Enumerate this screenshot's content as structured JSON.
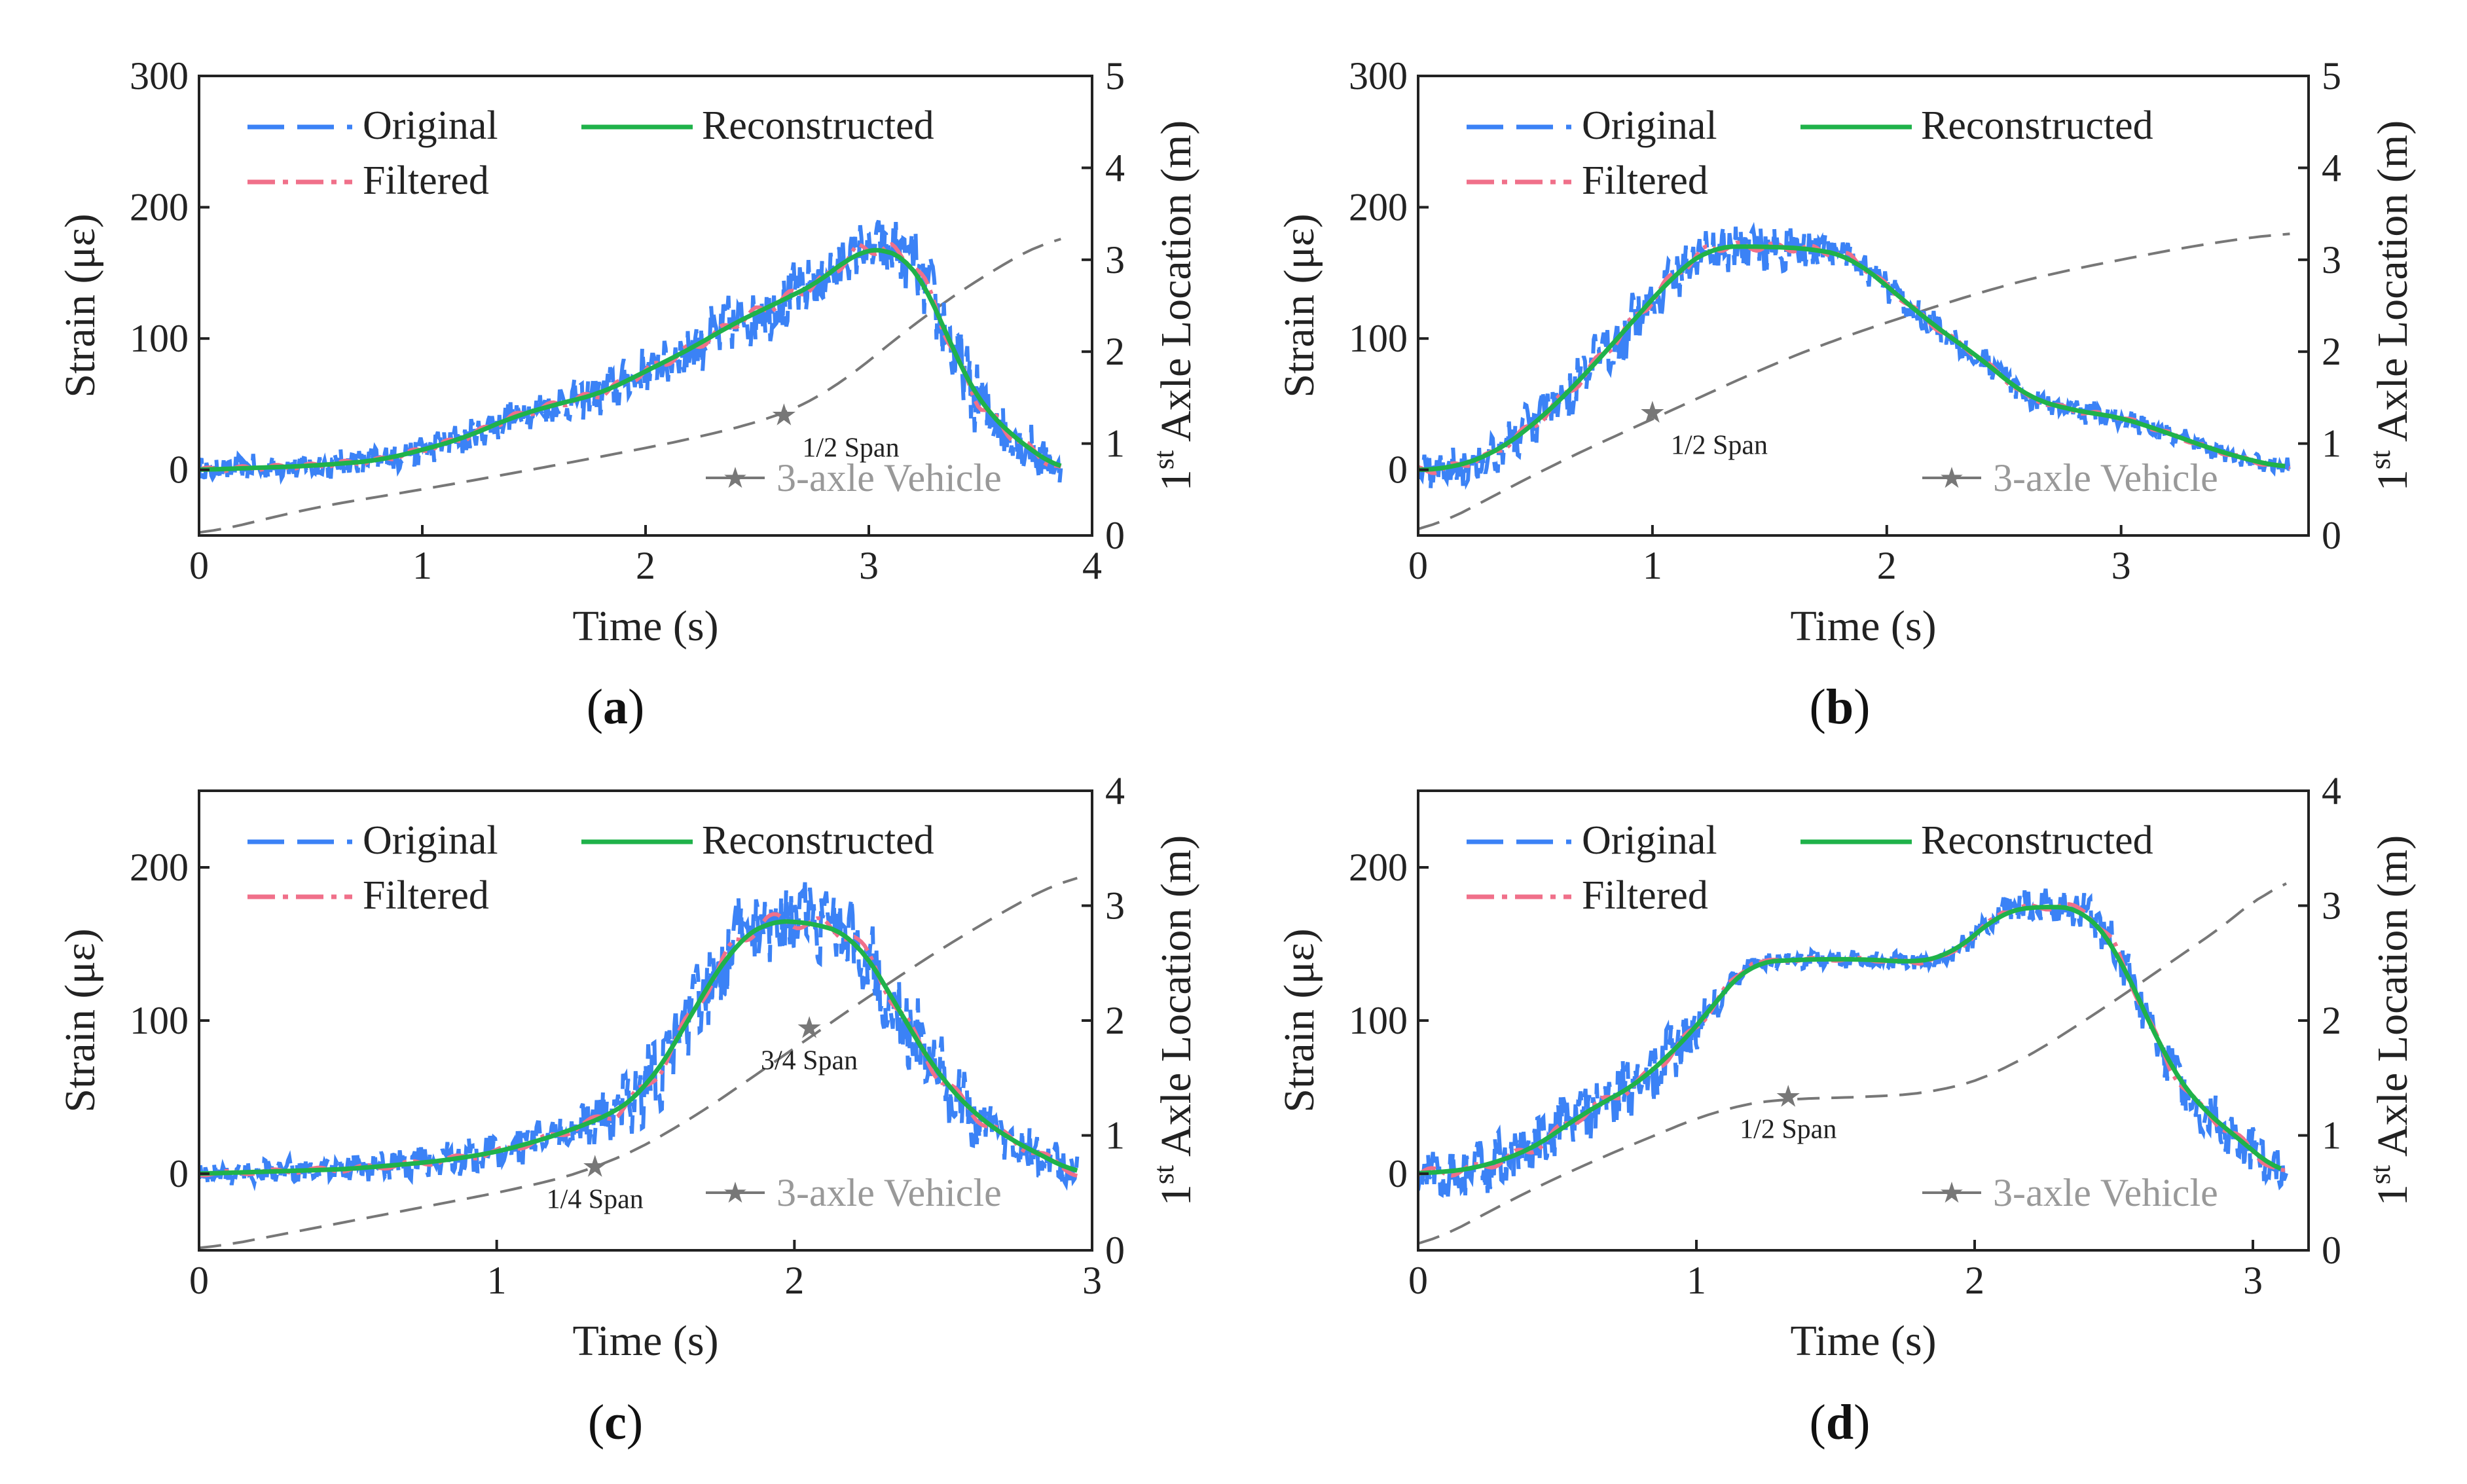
{
  "figure": {
    "colors": {
      "original": "#3b82f6",
      "filtered": "#f0708a",
      "reconstructed": "#1fb24a",
      "vehicle": "#777777",
      "vehicle_text": "#999999",
      "axis": "#222222"
    },
    "legend": {
      "original": "Original",
      "reconstructed": "Reconstructed",
      "filtered": "Filtered"
    }
  },
  "chart_data": [
    {
      "id": "a",
      "panel_label_open": "(",
      "panel_label_letter": "a",
      "panel_label_close": ")",
      "type": "line",
      "xlabel": "Time (s)",
      "ylabel": "Strain (με)",
      "y2label_prefix": "1",
      "y2label_sup": "st",
      "y2label_suffix": " Axle Location (m)",
      "xlim": [
        0,
        4
      ],
      "ylim": [
        -50,
        300
      ],
      "y2lim": [
        0,
        5
      ],
      "xticks": [
        0,
        1,
        2,
        3,
        4
      ],
      "yticks": [
        0,
        100,
        200,
        300
      ],
      "y2ticks": [
        0,
        1,
        2,
        3,
        4,
        5
      ],
      "vehicle_label": "3-axle Vehicle",
      "strain_curve": [
        [
          0,
          0
        ],
        [
          0.5,
          3
        ],
        [
          0.8,
          7
        ],
        [
          1.0,
          15
        ],
        [
          1.2,
          25
        ],
        [
          1.4,
          40
        ],
        [
          1.6,
          50
        ],
        [
          1.8,
          58
        ],
        [
          2.0,
          75
        ],
        [
          2.2,
          92
        ],
        [
          2.4,
          112
        ],
        [
          2.6,
          128
        ],
        [
          2.8,
          145
        ],
        [
          2.95,
          168
        ],
        [
          3.1,
          168
        ],
        [
          3.2,
          158
        ],
        [
          3.3,
          125
        ],
        [
          3.4,
          80
        ],
        [
          3.5,
          50
        ],
        [
          3.6,
          32
        ],
        [
          3.75,
          12
        ],
        [
          3.86,
          0
        ]
      ],
      "noise_amp": [
        [
          0,
          8
        ],
        [
          1.5,
          12
        ],
        [
          2.6,
          22
        ],
        [
          3.0,
          18
        ],
        [
          3.4,
          28
        ],
        [
          3.86,
          12
        ]
      ],
      "strain_span": [
        0,
        3.86
      ],
      "vehicle_curve": [
        [
          0,
          0
        ],
        [
          0.5,
          0.3
        ],
        [
          1.0,
          0.5
        ],
        [
          1.5,
          0.72
        ],
        [
          2.0,
          0.95
        ],
        [
          2.3,
          1.1
        ],
        [
          2.6,
          1.3
        ],
        [
          2.8,
          1.5
        ],
        [
          3.0,
          1.9
        ],
        [
          3.2,
          2.3
        ],
        [
          3.4,
          2.65
        ],
        [
          3.6,
          2.95
        ],
        [
          3.86,
          3.3
        ]
      ],
      "annotations": [
        {
          "x": 2.62,
          "y2": 1.3,
          "label": "1/2 Span",
          "pos": "below-right"
        }
      ]
    },
    {
      "id": "b",
      "panel_label_open": "(",
      "panel_label_letter": "b",
      "panel_label_close": ")",
      "type": "line",
      "xlabel": "Time (s)",
      "ylabel": "Strain (με)",
      "y2label_prefix": "1",
      "y2label_sup": "st",
      "y2label_suffix": " Axle Location (m)",
      "xlim": [
        0,
        3.8
      ],
      "ylim": [
        -50,
        300
      ],
      "y2lim": [
        0,
        5
      ],
      "xticks": [
        0,
        1,
        2,
        3
      ],
      "yticks": [
        0,
        100,
        200,
        300
      ],
      "y2ticks": [
        0,
        1,
        2,
        3,
        4,
        5
      ],
      "vehicle_label": "3-axle Vehicle",
      "strain_curve": [
        [
          0,
          0
        ],
        [
          0.1,
          0
        ],
        [
          0.3,
          10
        ],
        [
          0.5,
          35
        ],
        [
          0.7,
          70
        ],
        [
          0.9,
          110
        ],
        [
          1.1,
          150
        ],
        [
          1.25,
          170
        ],
        [
          1.5,
          170
        ],
        [
          1.7,
          168
        ],
        [
          1.85,
          162
        ],
        [
          2.0,
          140
        ],
        [
          2.2,
          110
        ],
        [
          2.4,
          85
        ],
        [
          2.6,
          55
        ],
        [
          2.8,
          45
        ],
        [
          3.0,
          40
        ],
        [
          3.2,
          28
        ],
        [
          3.4,
          15
        ],
        [
          3.6,
          5
        ],
        [
          3.7,
          2
        ]
      ],
      "noise_amp": [
        [
          0,
          12
        ],
        [
          0.8,
          20
        ],
        [
          1.2,
          18
        ],
        [
          2.0,
          10
        ],
        [
          2.6,
          8
        ],
        [
          3.7,
          6
        ]
      ],
      "strain_span": [
        0,
        3.72
      ],
      "vehicle_curve": [
        [
          0,
          0
        ],
        [
          0.3,
          0.4
        ],
        [
          0.6,
          0.8
        ],
        [
          0.9,
          1.15
        ],
        [
          1.2,
          1.5
        ],
        [
          1.5,
          1.85
        ],
        [
          1.8,
          2.15
        ],
        [
          2.1,
          2.4
        ],
        [
          2.4,
          2.65
        ],
        [
          2.7,
          2.85
        ],
        [
          3.0,
          3.0
        ],
        [
          3.3,
          3.15
        ],
        [
          3.72,
          3.3
        ]
      ],
      "annotations": [
        {
          "x": 1.0,
          "y2": 1.33,
          "label": "1/2 Span",
          "pos": "below-right"
        }
      ]
    },
    {
      "id": "c",
      "panel_label_open": "(",
      "panel_label_letter": "c",
      "panel_label_close": ")",
      "type": "line",
      "xlabel": "Time (s)",
      "ylabel": "Strain (με)",
      "y2label_prefix": "1",
      "y2label_sup": "st",
      "y2label_suffix": " Axle Location (m)",
      "xlim": [
        0,
        3
      ],
      "ylim": [
        -50,
        250
      ],
      "y2lim": [
        0,
        4
      ],
      "xticks": [
        0,
        1,
        2,
        3
      ],
      "yticks": [
        0,
        100,
        200
      ],
      "y2ticks": [
        0,
        1,
        2,
        3,
        4
      ],
      "vehicle_label": "3-axle Vehicle",
      "strain_curve": [
        [
          0,
          0
        ],
        [
          0.5,
          3
        ],
        [
          0.8,
          8
        ],
        [
          1.0,
          14
        ],
        [
          1.2,
          25
        ],
        [
          1.4,
          40
        ],
        [
          1.5,
          55
        ],
        [
          1.6,
          85
        ],
        [
          1.7,
          120
        ],
        [
          1.8,
          150
        ],
        [
          1.9,
          165
        ],
        [
          2.0,
          165
        ],
        [
          2.1,
          162
        ],
        [
          2.2,
          155
        ],
        [
          2.3,
          125
        ],
        [
          2.4,
          90
        ],
        [
          2.5,
          60
        ],
        [
          2.6,
          40
        ],
        [
          2.7,
          25
        ],
        [
          2.8,
          15
        ],
        [
          2.95,
          0
        ]
      ],
      "noise_amp": [
        [
          0,
          6
        ],
        [
          1.3,
          12
        ],
        [
          1.5,
          25
        ],
        [
          2.1,
          22
        ],
        [
          2.4,
          25
        ],
        [
          2.95,
          10
        ]
      ],
      "strain_span": [
        0,
        2.95
      ],
      "vehicle_curve": [
        [
          0,
          0
        ],
        [
          0.4,
          0.2
        ],
        [
          0.8,
          0.4
        ],
        [
          1.1,
          0.55
        ],
        [
          1.35,
          0.72
        ],
        [
          1.6,
          1.05
        ],
        [
          1.8,
          1.4
        ],
        [
          2.05,
          1.85
        ],
        [
          2.3,
          2.3
        ],
        [
          2.6,
          2.8
        ],
        [
          2.95,
          3.3
        ]
      ],
      "annotations": [
        {
          "x": 1.33,
          "y2": 0.72,
          "label": "1/4 Span",
          "pos": "below"
        },
        {
          "x": 2.05,
          "y2": 1.93,
          "label": "3/4 Span",
          "pos": "below"
        }
      ]
    },
    {
      "id": "d",
      "panel_label_open": "(",
      "panel_label_letter": "d",
      "panel_label_close": ")",
      "type": "line",
      "xlabel": "Time (s)",
      "ylabel": "Strain (με)",
      "y2label_prefix": "1",
      "y2label_sup": "st",
      "y2label_suffix": " Axle Location (m)",
      "xlim": [
        0,
        3.2
      ],
      "ylim": [
        -50,
        250
      ],
      "y2lim": [
        0,
        4
      ],
      "xticks": [
        0,
        1,
        2,
        3
      ],
      "yticks": [
        0,
        100,
        200
      ],
      "y2ticks": [
        0,
        1,
        2,
        3,
        4
      ],
      "vehicle_label": "3-axle Vehicle",
      "strain_curve": [
        [
          0,
          0
        ],
        [
          0.2,
          3
        ],
        [
          0.4,
          15
        ],
        [
          0.6,
          40
        ],
        [
          0.8,
          60
        ],
        [
          1.0,
          95
        ],
        [
          1.1,
          120
        ],
        [
          1.2,
          138
        ],
        [
          1.4,
          140
        ],
        [
          1.6,
          140
        ],
        [
          1.8,
          138
        ],
        [
          1.9,
          142
        ],
        [
          2.0,
          155
        ],
        [
          2.1,
          172
        ],
        [
          2.3,
          175
        ],
        [
          2.4,
          172
        ],
        [
          2.5,
          150
        ],
        [
          2.6,
          110
        ],
        [
          2.7,
          70
        ],
        [
          2.8,
          45
        ],
        [
          2.9,
          30
        ],
        [
          3.0,
          15
        ],
        [
          3.1,
          0
        ]
      ],
      "noise_amp": [
        [
          0,
          15
        ],
        [
          0.9,
          18
        ],
        [
          1.2,
          5
        ],
        [
          1.9,
          5
        ],
        [
          2.2,
          10
        ],
        [
          2.9,
          15
        ],
        [
          3.12,
          12
        ]
      ],
      "strain_span": [
        0,
        3.12
      ],
      "vehicle_curve": [
        [
          0,
          0
        ],
        [
          0.3,
          0.4
        ],
        [
          0.6,
          0.75
        ],
        [
          0.9,
          1.05
        ],
        [
          1.1,
          1.25
        ],
        [
          1.3,
          1.32
        ],
        [
          1.6,
          1.33
        ],
        [
          1.9,
          1.38
        ],
        [
          2.1,
          1.55
        ],
        [
          2.4,
          2.0
        ],
        [
          2.7,
          2.5
        ],
        [
          3.0,
          3.0
        ],
        [
          3.12,
          3.3
        ]
      ],
      "annotations": [
        {
          "x": 1.33,
          "y2": 1.33,
          "label": "1/2 Span",
          "pos": "below"
        }
      ]
    }
  ]
}
